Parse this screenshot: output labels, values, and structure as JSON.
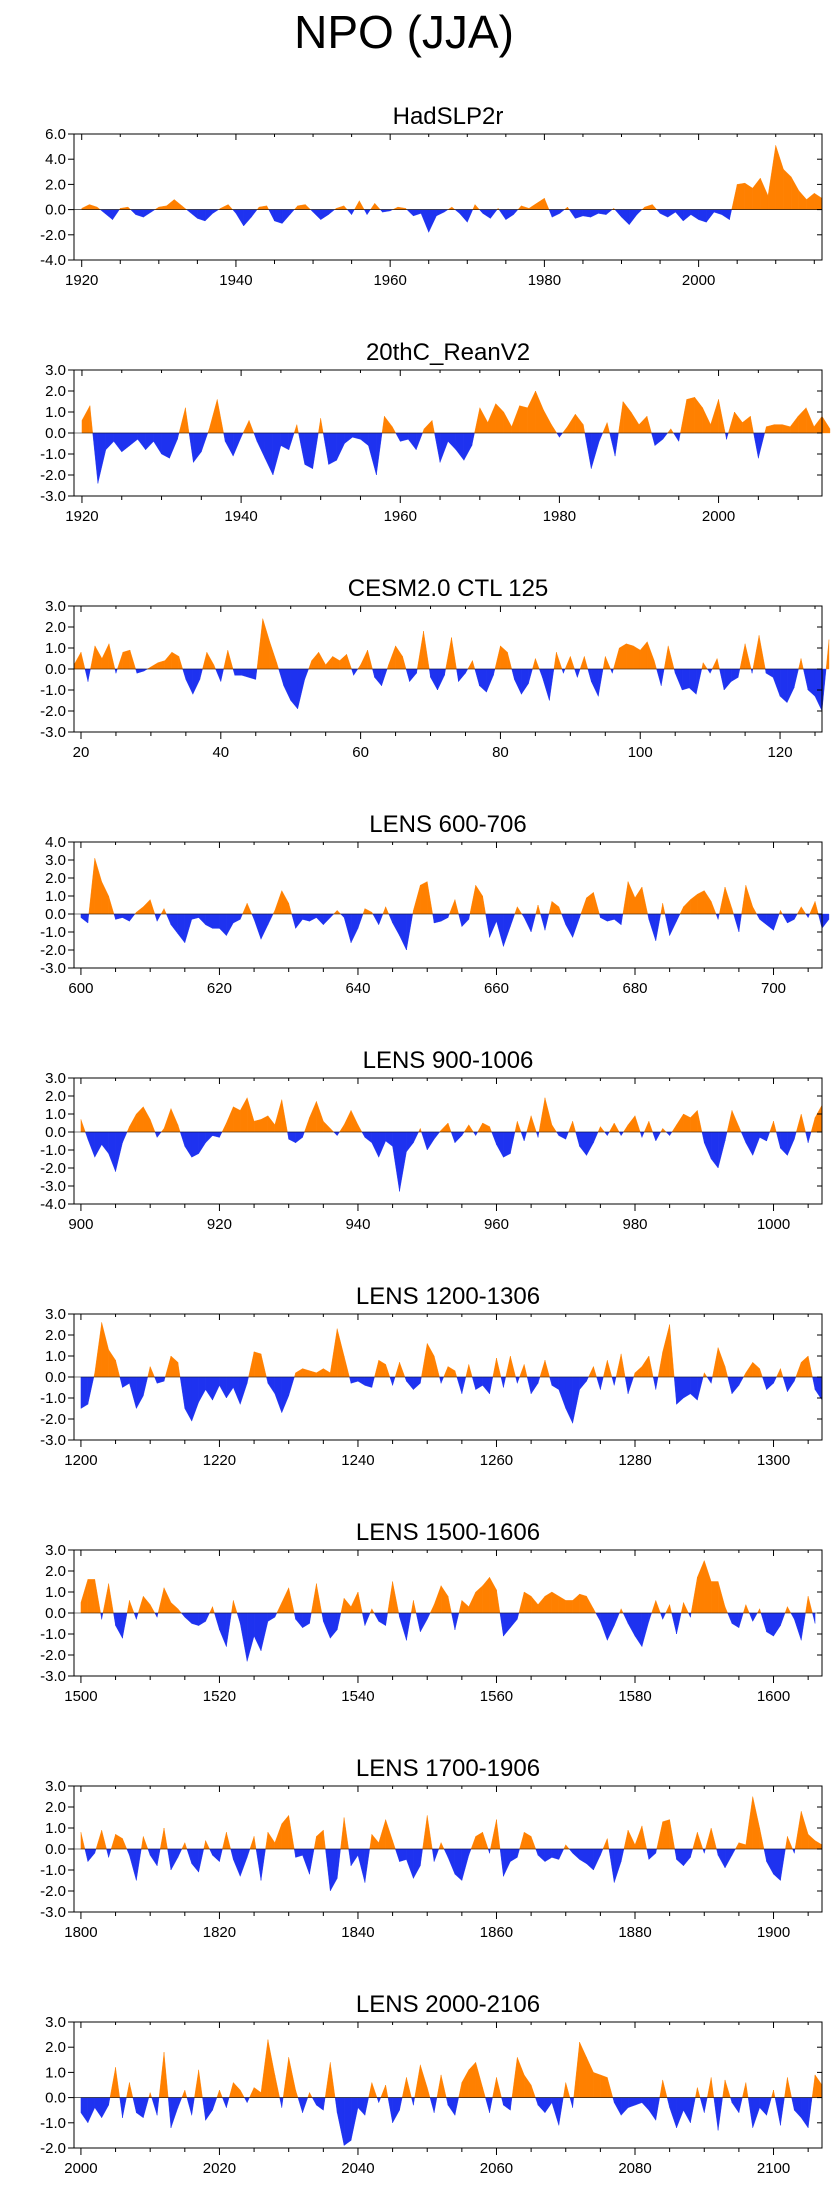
{
  "figure_title": "NPO (JJA)",
  "colors": {
    "positive": "#FF8000",
    "negative": "#1E32F0",
    "axis": "#000000"
  },
  "chart_data": [
    {
      "type": "area",
      "title": "HadSLP2r",
      "xlim": [
        1919,
        2016
      ],
      "ylim": [
        -4,
        6
      ],
      "xticks": [
        1920,
        1940,
        1960,
        1980,
        2000
      ],
      "yticks": [
        -4,
        -2,
        0,
        2,
        4,
        6
      ],
      "ytick_labels": [
        "-4.0",
        "-2.0",
        "0.0",
        "2.0",
        "4.0",
        "6.0"
      ],
      "x_start": 1920,
      "values": [
        0.1,
        0.4,
        0.2,
        -0.3,
        -0.8,
        0.1,
        0.2,
        -0.4,
        -0.6,
        -0.2,
        0.2,
        0.3,
        0.8,
        0.3,
        -0.2,
        -0.7,
        -0.9,
        -0.3,
        0.1,
        0.4,
        -0.3,
        -1.3,
        -0.6,
        0.2,
        0.3,
        -0.9,
        -1.1,
        -0.4,
        0.3,
        0.4,
        -0.2,
        -0.8,
        -0.4,
        0.1,
        0.3,
        -0.4,
        0.7,
        -0.4,
        0.5,
        -0.2,
        -0.1,
        0.2,
        0.1,
        -0.5,
        -0.3,
        -1.8,
        -0.5,
        -0.2,
        0.2,
        -0.3,
        -1.0,
        0.4,
        -0.3,
        -0.7,
        0.1,
        -0.8,
        -0.4,
        0.3,
        0.1,
        0.5,
        0.9,
        -0.6,
        -0.3,
        0.2,
        -0.7,
        -0.5,
        -0.6,
        -0.3,
        -0.4,
        0.1,
        -0.6,
        -1.2,
        -0.4,
        0.2,
        0.4,
        -0.3,
        -0.6,
        -0.2,
        -0.9,
        -0.4,
        -0.8,
        -1.0,
        -0.2,
        -0.4,
        -0.8,
        2.0,
        2.1,
        1.7,
        2.5,
        1.1,
        5.1,
        3.2,
        2.6,
        1.5,
        0.8,
        1.3,
        0.9
      ]
    },
    {
      "type": "area",
      "title": "20thC_ReanV2",
      "xlim": [
        1919,
        2013
      ],
      "ylim": [
        -3,
        3
      ],
      "xticks": [
        1920,
        1940,
        1960,
        1980,
        2000
      ],
      "yticks": [
        -3,
        -2,
        -1,
        0,
        1,
        2,
        3
      ],
      "ytick_labels": [
        "-3.0",
        "-2.0",
        "-1.0",
        "0.0",
        "1.0",
        "2.0",
        "3.0"
      ],
      "x_start": 1920,
      "values": [
        0.6,
        1.3,
        -2.4,
        -0.8,
        -0.4,
        -0.9,
        -0.6,
        -0.3,
        -0.8,
        -0.4,
        -1.0,
        -1.2,
        -0.3,
        1.2,
        -1.4,
        -0.9,
        0.2,
        1.6,
        -0.4,
        -1.1,
        -0.2,
        0.6,
        -0.4,
        -1.2,
        -2.0,
        -0.6,
        -0.8,
        0.4,
        -1.5,
        -1.7,
        0.7,
        -1.5,
        -1.3,
        -0.5,
        -0.2,
        -0.3,
        -0.6,
        -2.0,
        0.8,
        0.3,
        -0.4,
        -0.3,
        -0.8,
        0.2,
        0.6,
        -1.4,
        -0.4,
        -0.8,
        -1.3,
        -0.6,
        1.2,
        0.5,
        1.4,
        1.0,
        0.3,
        1.3,
        1.2,
        2.0,
        1.1,
        0.4,
        -0.2,
        0.3,
        0.9,
        0.4,
        -1.7,
        -0.4,
        0.5,
        -1.1,
        1.5,
        1.0,
        0.4,
        0.8,
        -0.6,
        -0.3,
        0.2,
        -0.4,
        1.6,
        1.7,
        1.2,
        0.4,
        1.6,
        -0.3,
        1.0,
        0.5,
        0.8,
        -1.2,
        0.3,
        0.4,
        0.4,
        0.3,
        0.8,
        1.2,
        0.3,
        0.8,
        0.2
      ]
    },
    {
      "type": "area",
      "title": "CESM2.0 CTL 125",
      "xlim": [
        19,
        126
      ],
      "ylim": [
        -3,
        3
      ],
      "xticks": [
        20,
        40,
        60,
        80,
        100,
        120
      ],
      "yticks": [
        -3,
        -2,
        -1,
        0,
        1,
        2,
        3
      ],
      "ytick_labels": [
        "-3.0",
        "-2.0",
        "-1.0",
        "0.0",
        "1.0",
        "2.0",
        "3.0"
      ],
      "x_start": 19,
      "values": [
        0.2,
        0.8,
        -0.6,
        1.1,
        0.5,
        1.2,
        -0.2,
        0.8,
        0.9,
        -0.2,
        -0.1,
        0.1,
        0.3,
        0.4,
        0.8,
        0.6,
        -0.5,
        -1.2,
        -0.5,
        0.8,
        0.2,
        -0.6,
        0.9,
        -0.3,
        -0.3,
        -0.4,
        -0.5,
        2.4,
        1.3,
        0.3,
        -0.8,
        -1.5,
        -1.9,
        -0.5,
        0.4,
        0.8,
        0.2,
        0.6,
        0.4,
        0.7,
        -0.3,
        0.2,
        0.9,
        -0.4,
        -0.8,
        0.2,
        1.1,
        0.6,
        -0.6,
        -0.2,
        1.8,
        -0.4,
        -1.0,
        -0.3,
        1.5,
        -0.6,
        -0.2,
        0.4,
        -0.8,
        -1.1,
        -0.3,
        1.1,
        0.8,
        -0.5,
        -1.2,
        -0.7,
        0.5,
        -0.4,
        -1.5,
        0.8,
        -0.2,
        0.6,
        -0.4,
        0.6,
        -0.6,
        -1.3,
        0.6,
        -0.2,
        1.0,
        1.2,
        1.1,
        0.9,
        1.3,
        0.4,
        -0.8,
        1.1,
        -0.2,
        -1.0,
        -0.9,
        -1.2,
        0.3,
        -0.2,
        0.5,
        -1.0,
        -0.6,
        -0.4,
        1.2,
        -0.2,
        1.6,
        -0.2,
        -0.4,
        -1.3,
        -1.6,
        -0.9,
        0.5,
        -1.0,
        -1.3,
        -2.0,
        1.4
      ]
    },
    {
      "type": "area",
      "title": "LENS 600-706",
      "xlim": [
        599,
        707
      ],
      "ylim": [
        -3,
        4
      ],
      "xticks": [
        600,
        620,
        640,
        660,
        680,
        700
      ],
      "yticks": [
        -3,
        -2,
        -1,
        0,
        1,
        2,
        3,
        4
      ],
      "ytick_labels": [
        "-3.0",
        "-2.0",
        "-1.0",
        "0.0",
        "1.0",
        "2.0",
        "3.0",
        "4.0"
      ],
      "x_start": 600,
      "values": [
        -0.2,
        -0.5,
        3.1,
        1.8,
        1.0,
        -0.3,
        -0.2,
        -0.4,
        0.1,
        0.4,
        0.8,
        -0.4,
        0.3,
        -0.6,
        -1.1,
        -1.6,
        -0.3,
        -0.2,
        -0.6,
        -0.8,
        -0.8,
        -1.2,
        -0.5,
        -0.3,
        0.6,
        -0.3,
        -1.4,
        -0.6,
        0.2,
        1.3,
        0.6,
        -0.8,
        -0.3,
        -0.4,
        -0.2,
        -0.6,
        -0.2,
        0.2,
        -0.2,
        -1.6,
        -0.8,
        0.3,
        0.1,
        -0.6,
        0.4,
        -0.5,
        -1.2,
        -2.0,
        0.2,
        1.6,
        1.8,
        -0.5,
        -0.4,
        -0.2,
        0.8,
        -0.7,
        -0.3,
        1.6,
        1.0,
        -1.3,
        -0.4,
        -1.8,
        -0.7,
        0.4,
        -0.2,
        -1.0,
        0.5,
        -0.9,
        0.7,
        0.4,
        -0.6,
        -1.3,
        -0.2,
        0.9,
        1.2,
        -0.2,
        -0.4,
        -0.3,
        -0.6,
        1.8,
        0.9,
        1.5,
        -0.3,
        -1.5,
        0.6,
        -1.2,
        -0.4,
        0.4,
        0.8,
        1.1,
        1.3,
        0.7,
        -0.3,
        1.5,
        0.3,
        -1.0,
        1.6,
        0.4,
        -0.3,
        -0.6,
        -0.9,
        0.2,
        -0.5,
        -0.3,
        0.4,
        -0.2,
        0.7,
        -0.8,
        -0.3
      ]
    },
    {
      "type": "area",
      "title": "LENS 900-1006",
      "xlim": [
        899,
        1007
      ],
      "ylim": [
        -4,
        3
      ],
      "xticks": [
        900,
        920,
        940,
        960,
        980,
        1000
      ],
      "yticks": [
        -4,
        -3,
        -2,
        -1,
        0,
        1,
        2,
        3
      ],
      "ytick_labels": [
        "-4.0",
        "-3.0",
        "-2.0",
        "-1.0",
        "0.0",
        "1.0",
        "2.0",
        "3.0"
      ],
      "x_start": 900,
      "values": [
        0.7,
        -0.4,
        -1.4,
        -0.7,
        -1.2,
        -2.2,
        -0.6,
        0.3,
        1.0,
        1.4,
        0.7,
        -0.3,
        0.2,
        1.3,
        0.4,
        -0.8,
        -1.4,
        -1.2,
        -0.6,
        -0.2,
        -0.3,
        0.5,
        1.4,
        1.2,
        1.9,
        0.6,
        0.7,
        0.9,
        0.4,
        1.8,
        -0.4,
        -0.6,
        -0.3,
        0.8,
        1.7,
        0.6,
        0.2,
        -0.2,
        0.4,
        1.2,
        0.4,
        -0.3,
        -0.6,
        -1.4,
        -0.5,
        -0.8,
        -3.3,
        -1.1,
        -0.6,
        0.2,
        -1.0,
        -0.4,
        0.1,
        0.5,
        -0.6,
        -0.2,
        0.4,
        -0.2,
        0.5,
        0.3,
        -0.7,
        -1.4,
        -1.2,
        0.6,
        -0.5,
        0.9,
        -0.3,
        1.9,
        0.4,
        -0.2,
        -0.4,
        0.6,
        -0.8,
        -1.3,
        -0.6,
        0.3,
        -0.2,
        0.5,
        -0.2,
        0.4,
        0.9,
        -0.3,
        0.6,
        -0.5,
        0.2,
        -0.2,
        0.4,
        1.0,
        0.8,
        1.2,
        -0.6,
        -1.5,
        -2.0,
        -0.5,
        1.2,
        0.3,
        -0.6,
        -1.3,
        -0.3,
        -0.5,
        0.6,
        -0.9,
        -1.3,
        -0.4,
        1.0,
        -0.6,
        0.8,
        1.5
      ]
    },
    {
      "type": "area",
      "title": "LENS 1200-1306",
      "xlim": [
        1199,
        1307
      ],
      "ylim": [
        -3,
        3
      ],
      "xticks": [
        1200,
        1220,
        1240,
        1260,
        1280,
        1300
      ],
      "yticks": [
        -3,
        -2,
        -1,
        0,
        1,
        2,
        3
      ],
      "ytick_labels": [
        "-3.0",
        "-2.0",
        "-1.0",
        "0.0",
        "1.0",
        "2.0",
        "3.0"
      ],
      "x_start": 1200,
      "values": [
        -1.5,
        -1.3,
        0.2,
        2.6,
        1.3,
        0.8,
        -0.5,
        -0.3,
        -1.5,
        -0.9,
        0.5,
        -0.3,
        -0.2,
        1.0,
        0.7,
        -1.5,
        -2.1,
        -1.2,
        -0.6,
        -1.1,
        -0.4,
        -1.0,
        -0.5,
        -1.3,
        -0.3,
        1.2,
        1.1,
        -0.3,
        -0.8,
        -1.7,
        -0.9,
        0.2,
        0.4,
        0.3,
        0.2,
        0.4,
        0.2,
        2.3,
        1.0,
        -0.3,
        -0.2,
        -0.4,
        -0.5,
        0.8,
        0.6,
        -0.4,
        0.7,
        -0.2,
        -0.6,
        -0.3,
        1.6,
        1.0,
        -0.3,
        0.5,
        0.3,
        -0.8,
        0.6,
        -0.6,
        -0.4,
        -0.8,
        0.9,
        -0.5,
        1.0,
        -0.3,
        0.6,
        -0.8,
        -0.3,
        0.8,
        -0.4,
        -0.6,
        -1.5,
        -2.2,
        -0.6,
        -0.2,
        0.5,
        -0.6,
        0.8,
        -0.4,
        1.1,
        -0.8,
        0.2,
        0.5,
        1.0,
        -0.6,
        1.2,
        2.5,
        -1.3,
        -1.0,
        -0.8,
        -1.1,
        0.2,
        -0.3,
        1.4,
        0.5,
        -0.8,
        -0.4,
        0.2,
        0.7,
        0.4,
        -0.6,
        -0.3,
        0.4,
        -0.7,
        -0.2,
        0.7,
        1.0,
        -0.6,
        -1.1
      ]
    },
    {
      "type": "area",
      "title": "LENS 1500-1606",
      "xlim": [
        1499,
        1607
      ],
      "ylim": [
        -3,
        3
      ],
      "xticks": [
        1500,
        1520,
        1540,
        1560,
        1580,
        1600
      ],
      "yticks": [
        -3,
        -2,
        -1,
        0,
        1,
        2,
        3
      ],
      "ytick_labels": [
        "-3.0",
        "-2.0",
        "-1.0",
        "0.0",
        "1.0",
        "2.0",
        "3.0"
      ],
      "x_start": 1500,
      "values": [
        0.5,
        1.6,
        1.6,
        -0.3,
        1.4,
        -0.6,
        -1.2,
        0.6,
        -0.3,
        0.8,
        0.4,
        -0.2,
        1.2,
        0.5,
        0.2,
        -0.2,
        -0.5,
        -0.6,
        -0.4,
        0.3,
        -0.8,
        -1.6,
        0.6,
        -0.5,
        -2.3,
        -1.1,
        -1.8,
        -0.4,
        -0.2,
        0.5,
        1.2,
        -0.3,
        -0.7,
        -0.5,
        1.4,
        -0.4,
        -1.2,
        -0.8,
        0.7,
        0.3,
        1.0,
        -0.6,
        0.2,
        -0.4,
        -0.6,
        1.5,
        -0.2,
        -1.3,
        0.6,
        -0.9,
        -0.3,
        0.4,
        1.3,
        0.8,
        -0.8,
        0.6,
        0.3,
        1.0,
        1.3,
        1.7,
        1.1,
        -1.1,
        -0.7,
        -0.3,
        1.0,
        0.8,
        0.4,
        0.8,
        1.0,
        0.8,
        0.6,
        0.6,
        0.9,
        0.8,
        0.2,
        -0.4,
        -1.3,
        -0.6,
        0.2,
        -0.5,
        -1.1,
        -1.6,
        -0.4,
        0.6,
        -0.3,
        0.4,
        -1.0,
        0.5,
        -0.2,
        1.7,
        2.5,
        1.5,
        1.5,
        0.3,
        -0.5,
        -0.7,
        0.4,
        -0.4,
        0.2,
        -0.9,
        -1.1,
        -0.6,
        0.3,
        -0.3,
        -1.3,
        0.8,
        -0.5
      ]
    },
    {
      "type": "area",
      "title": "LENS 1700-1906",
      "xlim": [
        1799,
        1907
      ],
      "ylim": [
        -3,
        3
      ],
      "xticks": [
        1800,
        1820,
        1840,
        1860,
        1880,
        1900
      ],
      "yticks": [
        -3,
        -2,
        -1,
        0,
        1,
        2,
        3
      ],
      "ytick_labels": [
        "-3.0",
        "-2.0",
        "-1.0",
        "0.0",
        "1.0",
        "2.0",
        "3.0"
      ],
      "x_start": 1800,
      "values": [
        0.8,
        -0.6,
        -0.2,
        0.9,
        -0.4,
        0.7,
        0.5,
        -0.3,
        -1.5,
        0.6,
        -0.3,
        -0.8,
        1.0,
        -1.0,
        -0.4,
        0.3,
        -0.7,
        -1.1,
        0.4,
        -0.3,
        -0.6,
        0.8,
        -0.5,
        -1.3,
        -0.4,
        0.6,
        -1.5,
        0.8,
        0.3,
        1.2,
        1.6,
        -0.4,
        -0.3,
        -1.2,
        0.6,
        0.9,
        -2.0,
        -1.4,
        1.5,
        -0.8,
        -0.3,
        -1.6,
        0.7,
        0.3,
        1.4,
        0.4,
        -0.6,
        -0.5,
        -1.4,
        -0.8,
        1.6,
        -0.6,
        0.3,
        -0.4,
        -1.2,
        -1.5,
        -0.3,
        0.6,
        0.8,
        -0.2,
        1.4,
        -1.3,
        -0.6,
        -0.4,
        0.8,
        0.6,
        -0.3,
        -0.6,
        -0.4,
        -0.5,
        0.2,
        -0.2,
        -0.5,
        -0.7,
        -1.0,
        -0.3,
        0.5,
        -1.6,
        -0.6,
        0.9,
        0.2,
        1.1,
        -0.5,
        -0.2,
        1.3,
        1.4,
        -0.5,
        -0.8,
        -0.4,
        0.8,
        -0.2,
        1.0,
        -0.3,
        -0.9,
        -0.3,
        0.3,
        0.2,
        2.5,
        1.0,
        -0.6,
        -1.2,
        -1.5,
        0.6,
        -0.2,
        1.8,
        0.7,
        0.4,
        0.2
      ]
    },
    {
      "type": "area",
      "title": "LENS 2000-2106",
      "xlim": [
        1999,
        2107
      ],
      "ylim": [
        -2,
        3
      ],
      "xticks": [
        2000,
        2020,
        2040,
        2060,
        2080,
        2100
      ],
      "yticks": [
        -2,
        -1,
        0,
        1,
        2,
        3
      ],
      "ytick_labels": [
        "-2.0",
        "-1.0",
        "0.0",
        "1.0",
        "2.0",
        "3.0"
      ],
      "x_start": 2000,
      "values": [
        -0.6,
        -1.0,
        -0.4,
        -0.8,
        -0.3,
        1.2,
        -0.8,
        0.6,
        -0.6,
        -0.8,
        0.2,
        -0.7,
        1.8,
        -1.2,
        -0.4,
        0.3,
        -0.7,
        1.1,
        -0.9,
        -0.5,
        0.3,
        -0.4,
        0.6,
        0.3,
        -0.2,
        0.4,
        0.2,
        2.3,
        0.9,
        -0.4,
        1.6,
        0.3,
        -0.6,
        0.2,
        -0.3,
        -0.5,
        1.4,
        -0.6,
        -1.9,
        -1.7,
        -0.4,
        -0.7,
        0.6,
        -0.2,
        0.5,
        -1.0,
        -0.5,
        0.8,
        -0.3,
        1.3,
        0.4,
        -0.6,
        0.9,
        -0.3,
        -0.7,
        0.6,
        1.1,
        1.4,
        0.4,
        -0.6,
        0.8,
        -0.3,
        -0.5,
        1.6,
        0.9,
        0.5,
        -0.3,
        -0.6,
        -0.2,
        -1.1,
        0.6,
        -0.4,
        2.2,
        1.6,
        1.0,
        0.9,
        0.8,
        -0.2,
        -0.7,
        -0.4,
        -0.3,
        -0.2,
        -0.5,
        -0.9,
        0.7,
        -0.4,
        -1.2,
        -0.5,
        -1.0,
        0.4,
        -0.6,
        0.8,
        -1.3,
        0.7,
        -0.2,
        -0.6,
        0.6,
        -1.2,
        -0.4,
        -0.7,
        0.3,
        -1.1,
        0.8,
        -0.5,
        -0.8,
        -1.2,
        0.9,
        0.5
      ]
    }
  ]
}
